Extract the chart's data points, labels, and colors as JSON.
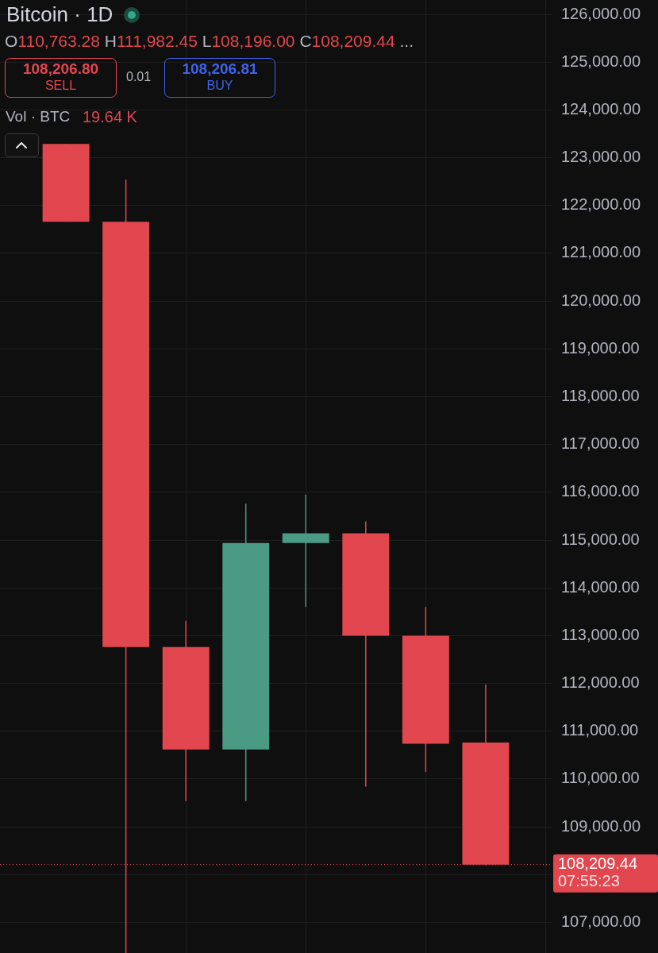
{
  "chart_data": {
    "type": "candlestick",
    "title": "Bitcoin · 1D",
    "subtitle": "O110,763.28 H111,982.45 L108,196.00 C108,209.44 ...",
    "categories": [
      null,
      null,
      null,
      null,
      null,
      null,
      null,
      null
    ],
    "ohlc": [
      [
        123290,
        123290,
        121660,
        121660
      ],
      [
        121660,
        122540,
        106360,
        112760
      ],
      [
        112760,
        113310,
        109540,
        110620
      ],
      [
        110620,
        115760,
        109540,
        114940
      ],
      [
        114940,
        115950,
        113600,
        115140
      ],
      [
        115140,
        115390,
        109840,
        113000
      ],
      [
        113000,
        113600,
        110150,
        110740
      ],
      [
        110763.28,
        111982.45,
        108196.0,
        108209.44
      ]
    ],
    "colors": [
      "#e2474f",
      "#e2474f",
      "#e2474f",
      "#4a9a84",
      "#4a9a84",
      "#e2474f",
      "#e2474f",
      "#e2474f"
    ],
    "ylim": [
      106360,
      126300
    ],
    "yticks": [
      {
        "value": 107000,
        "label": "107,000.00"
      },
      {
        "value": 108000,
        "label": null
      },
      {
        "value": 109000,
        "label": "109,000.00"
      },
      {
        "value": 110000,
        "label": "110,000.00"
      },
      {
        "value": 111000,
        "label": "111,000.00"
      },
      {
        "value": 112000,
        "label": "112,000.00"
      },
      {
        "value": 113000,
        "label": "113,000.00"
      },
      {
        "value": 114000,
        "label": "114,000.00"
      },
      {
        "value": 115000,
        "label": "115,000.00"
      },
      {
        "value": 116000,
        "label": "116,000.00"
      },
      {
        "value": 117000,
        "label": "117,000.00"
      },
      {
        "value": 118000,
        "label": "118,000.00"
      },
      {
        "value": 119000,
        "label": "119,000.00"
      },
      {
        "value": 120000,
        "label": "120,000.00"
      },
      {
        "value": 121000,
        "label": "121,000.00"
      },
      {
        "value": 122000,
        "label": "122,000.00"
      },
      {
        "value": 123000,
        "label": "123,000.00"
      },
      {
        "value": 124000,
        "label": "124,000.00"
      },
      {
        "value": 125000,
        "label": "125,000.00"
      },
      {
        "value": 126000,
        "label": "126,000.00"
      }
    ],
    "grid": true,
    "tick_labels": "y",
    "ref_lines": [
      {
        "axis": "y",
        "value": 108209.44,
        "label": "108,209.44",
        "color": "#e2474f",
        "line_style": "dotted"
      }
    ],
    "annotations": [
      "108,206.80",
      "SELL",
      "0.01",
      "108,206.81",
      "BUY",
      "Vol · BTC",
      "19.64 K",
      "07:55:23"
    ]
  }
}
